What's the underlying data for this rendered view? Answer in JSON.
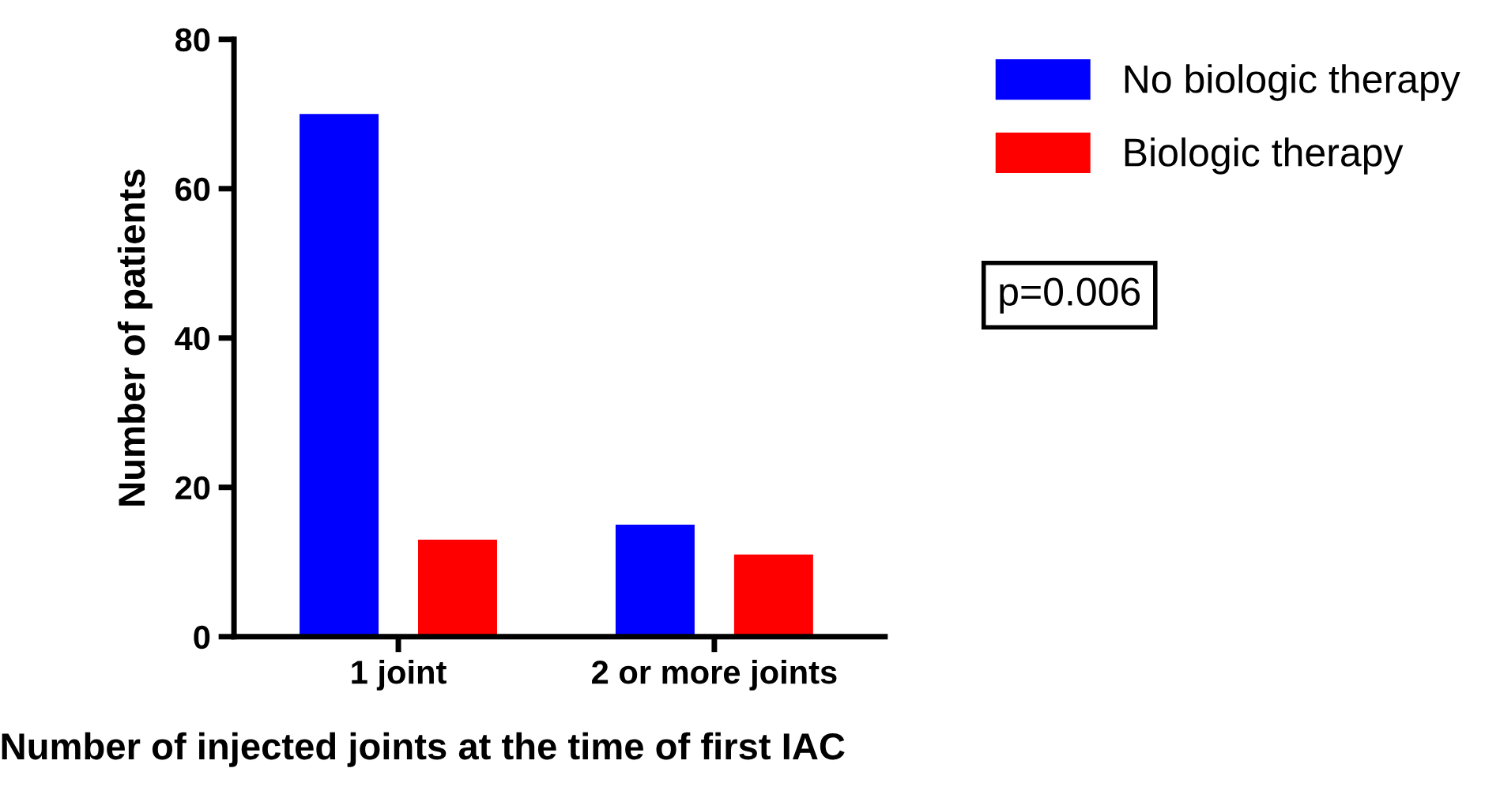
{
  "chart_data": {
    "type": "bar",
    "xlabel": "Number of injected joints at the time of first IAC",
    "ylabel": "Number of patients",
    "categories": [
      "1 joint",
      "2 or more joints"
    ],
    "series": [
      {
        "name": "No biologic therapy",
        "color": "#0000ff",
        "values": [
          70,
          15
        ]
      },
      {
        "name": "Biologic therapy",
        "color": "#ff0000",
        "values": [
          13,
          11
        ]
      }
    ],
    "ylim": [
      0,
      80
    ],
    "yticks": [
      0,
      20,
      40,
      60,
      80
    ],
    "grid": false,
    "legend": "top right",
    "annotations": [
      "p=0.006"
    ]
  }
}
